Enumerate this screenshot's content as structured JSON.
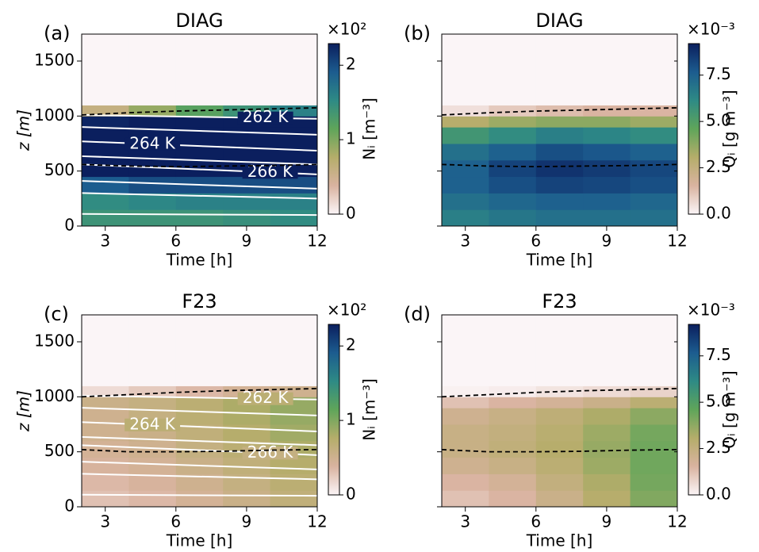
{
  "chart_data": [
    {
      "type": "heatmap",
      "label": "(a)",
      "title": "DIAG",
      "xlabel": "Time [h]",
      "ylabel": "z [m]",
      "xlim": [
        2,
        12
      ],
      "xticks": [
        3,
        6,
        9,
        12
      ],
      "ylim": [
        0,
        1745
      ],
      "yticks": [
        0,
        500,
        1000,
        1500
      ],
      "ytick_labels": true,
      "x_edges": [
        2,
        4,
        6,
        8,
        10,
        12
      ],
      "z_edges": [
        0,
        150,
        300,
        450,
        600,
        750,
        900,
        1000,
        1100,
        1745
      ],
      "field": [
        [
          1.4,
          1.4,
          1.4,
          1.45,
          1.5
        ],
        [
          1.5,
          1.55,
          1.6,
          1.6,
          1.6
        ],
        [
          1.9,
          2.0,
          2.0,
          2.0,
          2.0
        ],
        [
          2.3,
          2.3,
          2.3,
          2.3,
          2.3
        ],
        [
          2.3,
          2.3,
          2.3,
          2.3,
          2.3
        ],
        [
          2.3,
          2.3,
          2.3,
          2.3,
          2.3
        ],
        [
          2.25,
          2.3,
          2.3,
          2.3,
          2.3
        ],
        [
          0.6,
          0.9,
          1.2,
          1.4,
          1.6
        ],
        [
          0,
          0,
          0,
          0,
          0
        ]
      ],
      "contours": [
        {
          "x": [
            2,
            12
          ],
          "z": [
            110,
            100
          ]
        },
        {
          "x": [
            2,
            12
          ],
          "z": [
            300,
            250
          ]
        },
        {
          "x": [
            2,
            12
          ],
          "z": [
            410,
            340
          ]
        },
        {
          "x": [
            2,
            12
          ],
          "z": [
            560,
            470
          ],
          "label": "266 K"
        },
        {
          "x": [
            2,
            12
          ],
          "z": [
            635,
            560
          ]
        },
        {
          "x": [
            2,
            12
          ],
          "z": [
            770,
            685
          ],
          "label": "264 K"
        },
        {
          "x": [
            2,
            12
          ],
          "z": [
            900,
            830
          ]
        },
        {
          "x": [
            2,
            12
          ],
          "z": [
            1010,
            975
          ],
          "label": "262 K"
        }
      ],
      "dashed": [
        {
          "x": [
            2,
            4,
            6,
            8,
            10,
            12
          ],
          "z": [
            1010,
            1030,
            1045,
            1055,
            1065,
            1075
          ]
        },
        {
          "x": [
            2,
            4,
            6,
            8,
            10,
            12
          ],
          "z": [
            560,
            545,
            540,
            545,
            550,
            560
          ]
        }
      ],
      "colorbar": {
        "offset": "×10²",
        "label": "Nᵢ [m⁻³]",
        "lim": [
          0,
          2.29
        ],
        "ticks": [
          0,
          1,
          2
        ]
      },
      "colormap": [
        "#fbf5f7",
        "#d9b3a0",
        "#b5ad6a",
        "#5fa55a",
        "#2e8a85",
        "#1c5c8f",
        "#0b1f5e"
      ]
    },
    {
      "type": "heatmap",
      "label": "(b)",
      "title": "DIAG",
      "xlabel": "Time [h]",
      "xlim": [
        2,
        12
      ],
      "xticks": [
        3,
        6,
        9,
        12
      ],
      "ylim": [
        0,
        1745
      ],
      "yticks": [
        0,
        500,
        1000,
        1500
      ],
      "ytick_labels": false,
      "x_edges": [
        2,
        4,
        6,
        8,
        10,
        12
      ],
      "z_edges": [
        0,
        150,
        300,
        450,
        600,
        750,
        900,
        1000,
        1100,
        1745
      ],
      "field": [
        [
          6.5,
          6.8,
          7,
          7,
          7
        ],
        [
          7,
          7.3,
          7.5,
          7.5,
          7.3
        ],
        [
          7.5,
          8,
          8.3,
          8.2,
          8
        ],
        [
          7.5,
          8.3,
          8.7,
          8.5,
          8.2
        ],
        [
          7,
          7.5,
          8,
          7.8,
          7.5
        ],
        [
          5.5,
          6,
          6.5,
          6.3,
          6
        ],
        [
          3,
          3.5,
          3.8,
          3.8,
          3.5
        ],
        [
          0.5,
          1,
          1.3,
          1.5,
          1.5
        ],
        [
          0,
          0,
          0,
          0,
          0
        ]
      ],
      "contours": [],
      "dashed": [
        {
          "x": [
            2,
            4,
            6,
            8,
            10,
            12
          ],
          "z": [
            1010,
            1030,
            1045,
            1055,
            1065,
            1075
          ]
        },
        {
          "x": [
            2,
            4,
            6,
            8,
            10,
            12
          ],
          "z": [
            560,
            545,
            540,
            545,
            550,
            560
          ]
        }
      ],
      "colorbar": {
        "offset": "×10⁻³",
        "label": "Qᵢ [g m⁻³]",
        "lim": [
          0,
          9.2
        ],
        "ticks": [
          {
            "value": 0,
            "label": "0.0"
          },
          {
            "value": 2.5,
            "label": "2.5"
          },
          {
            "value": 5,
            "label": "5.0"
          },
          {
            "value": 7.5,
            "label": "7.5"
          }
        ]
      },
      "colormap": [
        "#fbf5f7",
        "#d9b3a0",
        "#b5ad6a",
        "#5fa55a",
        "#2e8a85",
        "#1c5c8f",
        "#0b1f5e"
      ]
    },
    {
      "type": "heatmap",
      "label": "(c)",
      "title": "F23",
      "xlabel": "Time [h]",
      "ylabel": "z [m]",
      "xlim": [
        2,
        12
      ],
      "xticks": [
        3,
        6,
        9,
        12
      ],
      "ylim": [
        0,
        1745
      ],
      "yticks": [
        0,
        500,
        1000,
        1500
      ],
      "ytick_labels": true,
      "x_edges": [
        2,
        4,
        6,
        8,
        10,
        12
      ],
      "z_edges": [
        0,
        150,
        300,
        450,
        600,
        750,
        900,
        1000,
        1100,
        1745
      ],
      "field": [
        [
          0.3,
          0.35,
          0.45,
          0.55,
          0.65
        ],
        [
          0.35,
          0.4,
          0.5,
          0.6,
          0.7
        ],
        [
          0.4,
          0.45,
          0.55,
          0.65,
          0.75
        ],
        [
          0.45,
          0.5,
          0.6,
          0.7,
          0.8
        ],
        [
          0.5,
          0.55,
          0.65,
          0.75,
          0.85
        ],
        [
          0.5,
          0.6,
          0.7,
          0.8,
          0.9
        ],
        [
          0.55,
          0.6,
          0.7,
          0.8,
          0.9
        ],
        [
          0.15,
          0.25,
          0.35,
          0.45,
          0.5
        ],
        [
          0,
          0,
          0,
          0,
          0
        ]
      ],
      "contours": [
        {
          "x": [
            2,
            12
          ],
          "z": [
            110,
            100
          ]
        },
        {
          "x": [
            2,
            12
          ],
          "z": [
            300,
            250
          ]
        },
        {
          "x": [
            2,
            12
          ],
          "z": [
            410,
            340
          ]
        },
        {
          "x": [
            2,
            12
          ],
          "z": [
            560,
            470
          ],
          "label": "266 K"
        },
        {
          "x": [
            2,
            12
          ],
          "z": [
            635,
            560
          ]
        },
        {
          "x": [
            2,
            12
          ],
          "z": [
            770,
            685
          ],
          "label": "264 K"
        },
        {
          "x": [
            2,
            12
          ],
          "z": [
            900,
            830
          ]
        },
        {
          "x": [
            2,
            12
          ],
          "z": [
            1010,
            975
          ],
          "label": "262 K"
        }
      ],
      "dashed": [
        {
          "x": [
            2,
            4,
            6,
            8,
            10,
            12
          ],
          "z": [
            1000,
            1020,
            1040,
            1055,
            1065,
            1075
          ]
        },
        {
          "x": [
            2,
            4,
            6,
            8,
            10,
            12
          ],
          "z": [
            520,
            500,
            500,
            505,
            515,
            520
          ]
        }
      ],
      "colorbar": {
        "offset": "×10²",
        "label": "Nᵢ [m⁻³]",
        "lim": [
          0,
          2.29
        ],
        "ticks": [
          0,
          1,
          2
        ]
      },
      "colormap": [
        "#fbf5f7",
        "#d9b3a0",
        "#b5ad6a",
        "#5fa55a",
        "#2e8a85",
        "#1c5c8f",
        "#0b1f5e"
      ]
    },
    {
      "type": "heatmap",
      "label": "(d)",
      "title": "F23",
      "xlabel": "Time [h]",
      "xlim": [
        2,
        12
      ],
      "xticks": [
        3,
        6,
        9,
        12
      ],
      "ylim": [
        0,
        1745
      ],
      "yticks": [
        0,
        500,
        1000,
        1500
      ],
      "ytick_labels": false,
      "x_edges": [
        2,
        4,
        6,
        8,
        10,
        12
      ],
      "z_edges": [
        0,
        150,
        300,
        450,
        600,
        750,
        900,
        1000,
        1100,
        1745
      ],
      "field": [
        [
          1.2,
          1.5,
          2.2,
          3.0,
          4.0
        ],
        [
          1.5,
          1.8,
          2.5,
          3.2,
          4.2
        ],
        [
          2,
          2.3,
          2.8,
          3.5,
          4.3
        ],
        [
          2.3,
          2.6,
          3,
          3.6,
          4.3
        ],
        [
          2.3,
          2.5,
          2.9,
          3.5,
          4.2
        ],
        [
          2,
          2.3,
          2.7,
          3.2,
          3.8
        ],
        [
          1.2,
          1.5,
          1.8,
          2.2,
          2.8
        ],
        [
          0.1,
          0.2,
          0.4,
          0.6,
          0.8
        ],
        [
          0,
          0,
          0,
          0,
          0
        ]
      ],
      "contours": [],
      "dashed": [
        {
          "x": [
            2,
            4,
            6,
            8,
            10,
            12
          ],
          "z": [
            1000,
            1020,
            1040,
            1055,
            1065,
            1075
          ]
        },
        {
          "x": [
            2,
            4,
            6,
            8,
            10,
            12
          ],
          "z": [
            520,
            500,
            500,
            505,
            515,
            520
          ]
        }
      ],
      "colorbar": {
        "offset": "×10⁻³",
        "label": "Qᵢ [g m⁻³]",
        "lim": [
          0,
          9.2
        ],
        "ticks": [
          {
            "value": 0,
            "label": "0.0"
          },
          {
            "value": 2.5,
            "label": "2.5"
          },
          {
            "value": 5,
            "label": "5.0"
          },
          {
            "value": 7.5,
            "label": "7.5"
          }
        ]
      },
      "colormap": [
        "#fbf5f7",
        "#d9b3a0",
        "#b5ad6a",
        "#5fa55a",
        "#2e8a85",
        "#1c5c8f",
        "#0b1f5e"
      ]
    }
  ]
}
